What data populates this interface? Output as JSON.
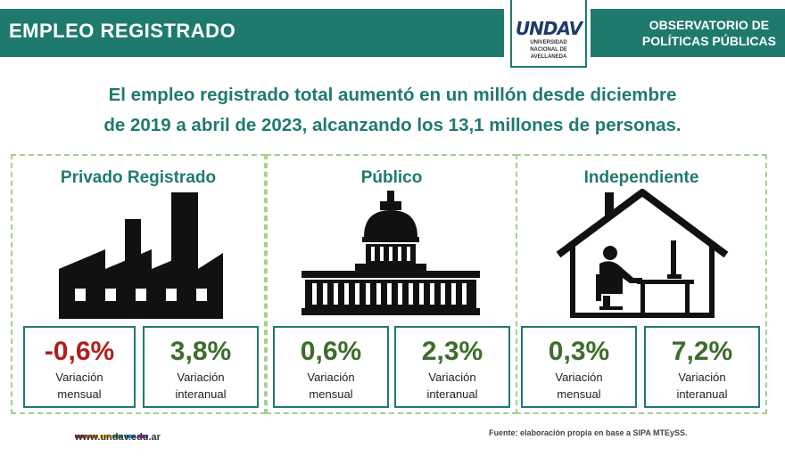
{
  "header": {
    "title": "EMPLEO REGISTRADO",
    "logo": {
      "word": "UNDAV",
      "sub_line1": "UNIVERSIDAD",
      "sub_line2": "NACIONAL DE",
      "sub_line3": "AVELLANEDA"
    },
    "observatory_line1": "OBSERVATORIO DE",
    "observatory_line2": "POLÍTICAS PÚBLICAS",
    "color": "#1f7a6e"
  },
  "headline": {
    "line1": "El empleo registrado total aumentó en un millón desde diciembre",
    "line2": "de 2019 a abril de 2023, alcanzando los 13,1 millones de personas."
  },
  "panels": [
    {
      "title": "Privado Registrado",
      "icon": "factory-icon",
      "mensual": {
        "value": "-0,6%",
        "label1": "Variación",
        "label2": "mensual"
      },
      "interanual": {
        "value": "3,8%",
        "label1": "Variación",
        "label2": "interanual"
      }
    },
    {
      "title": "Público",
      "icon": "capitol-building-icon",
      "mensual": {
        "value": "0,6%",
        "label1": "Variación",
        "label2": "mensual"
      },
      "interanual": {
        "value": "2,3%",
        "label1": "Variación",
        "label2": "interanual"
      }
    },
    {
      "title": "Independiente",
      "icon": "home-office-icon",
      "mensual": {
        "value": "0,3%",
        "label1": "Variación",
        "label2": "mensual"
      },
      "interanual": {
        "value": "7,2%",
        "label1": "Variación",
        "label2": "interanual"
      }
    }
  ],
  "colors": {
    "negative": "#b01d1d",
    "positive": "#3c6d2a",
    "panel_border": "#a8cf8f"
  },
  "footer": {
    "url": "www.undav.edu.ar",
    "source": "Fuente: elaboración propia en base a  SIPA MTEySS."
  }
}
